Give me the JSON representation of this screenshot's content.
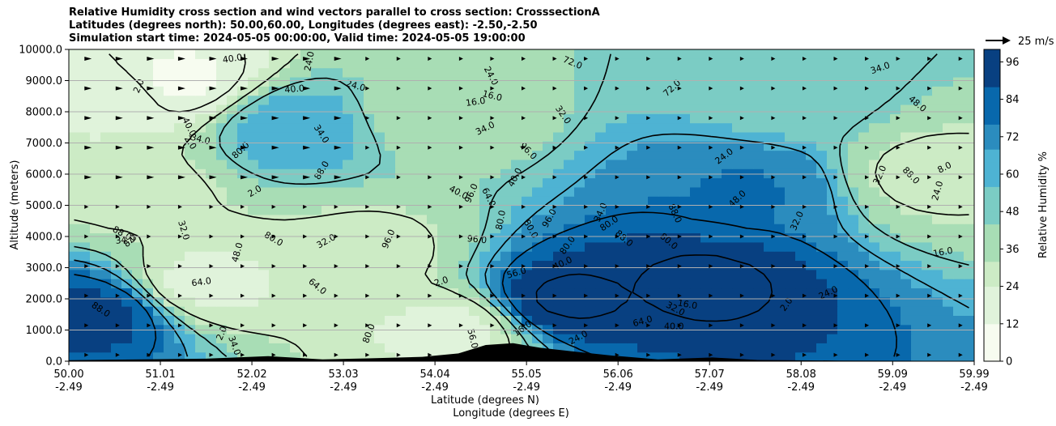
{
  "title": {
    "line1": "Relative Humidity cross section and wind vectors parallel to cross section: CrosssectionA",
    "line2": "Latitudes (degrees north): 50.00,60.00, Longitudes (degrees east): -2.50,-2.50",
    "line3": "Simulation start time: 2024-05-05 00:00:00, Valid time: 2024-05-05 19:00:00"
  },
  "chart_data": {
    "type": "heatmap",
    "xlabel": "Latitude (degrees N)",
    "xlabel2": "Longitude (degrees E)",
    "ylabel": "Altitude (meters)",
    "xlim": [
      50.0,
      59.99
    ],
    "ylim": [
      0,
      10000
    ],
    "x_ticks": [
      {
        "lat": "50.00",
        "lon": "-2.49",
        "v": 50.0
      },
      {
        "lat": "51.01",
        "lon": "-2.49",
        "v": 51.01
      },
      {
        "lat": "52.02",
        "lon": "-2.49",
        "v": 52.02
      },
      {
        "lat": "53.03",
        "lon": "-2.49",
        "v": 53.03
      },
      {
        "lat": "54.04",
        "lon": "-2.49",
        "v": 54.04
      },
      {
        "lat": "55.05",
        "lon": "-2.49",
        "v": 55.05
      },
      {
        "lat": "56.06",
        "lon": "-2.49",
        "v": 56.06
      },
      {
        "lat": "57.07",
        "lon": "-2.49",
        "v": 57.07
      },
      {
        "lat": "58.08",
        "lon": "-2.49",
        "v": 58.08
      },
      {
        "lat": "59.09",
        "lon": "-2.49",
        "v": 59.09
      },
      {
        "lat": "59.99",
        "lon": "-2.49",
        "v": 59.99
      }
    ],
    "y_ticks": [
      {
        "label": "0.0",
        "v": 0
      },
      {
        "label": "1000.0",
        "v": 1000
      },
      {
        "label": "2000.0",
        "v": 2000
      },
      {
        "label": "3000.0",
        "v": 3000
      },
      {
        "label": "4000.0",
        "v": 4000
      },
      {
        "label": "5000.0",
        "v": 5000
      },
      {
        "label": "6000.0",
        "v": 6000
      },
      {
        "label": "7000.0",
        "v": 7000
      },
      {
        "label": "8000.0",
        "v": 8000
      },
      {
        "label": "9000.0",
        "v": 9000
      },
      {
        "label": "10000.0",
        "v": 10000
      }
    ],
    "colorbar": {
      "label": "Relative Humidity %",
      "min": 0,
      "max": 100,
      "ticks": [
        "0",
        "12",
        "24",
        "36",
        "48",
        "60",
        "72",
        "84",
        "96"
      ],
      "colors": [
        "#f7fcf0",
        "#e0f3db",
        "#ccebc5",
        "#a8ddb5",
        "#7bccc4",
        "#4eb3d3",
        "#2b8cbe",
        "#0868ac",
        "#084081"
      ]
    },
    "wind_key": {
      "label": "25 m/s"
    },
    "rh_field": [
      {
        "lat": 50.5,
        "alt": 8500,
        "rh": 20
      },
      {
        "lat": 51.2,
        "alt": 9000,
        "rh": 10
      },
      {
        "lat": 50.7,
        "alt": 5500,
        "rh": 30
      },
      {
        "lat": 51.5,
        "alt": 2500,
        "rh": 20
      },
      {
        "lat": 50.3,
        "alt": 1500,
        "rh": 92
      },
      {
        "lat": 52.5,
        "alt": 7500,
        "rh": 62
      },
      {
        "lat": 53.3,
        "alt": 3500,
        "rh": 30
      },
      {
        "lat": 54.0,
        "alt": 8000,
        "rh": 38
      },
      {
        "lat": 54.2,
        "alt": 1000,
        "rh": 20
      },
      {
        "lat": 55.5,
        "alt": 2000,
        "rh": 97
      },
      {
        "lat": 57.0,
        "alt": 2500,
        "rh": 97
      },
      {
        "lat": 59.5,
        "alt": 6000,
        "rh": 30
      },
      {
        "lat": 58.0,
        "alt": 8500,
        "rh": 50
      },
      {
        "lat": 57.5,
        "alt": 5500,
        "rh": 78
      }
    ],
    "contour_labels": [
      "2.0",
      "64.0",
      "32.0",
      "40.0",
      "8.0",
      "24.0",
      "16.0",
      "56.0",
      "48.0",
      "88.0",
      "80.0",
      "72.0",
      "96.0",
      "34.0"
    ],
    "terrain": "black orography along surface, peaks near 54.6-55.5 N up to ~600 m"
  }
}
